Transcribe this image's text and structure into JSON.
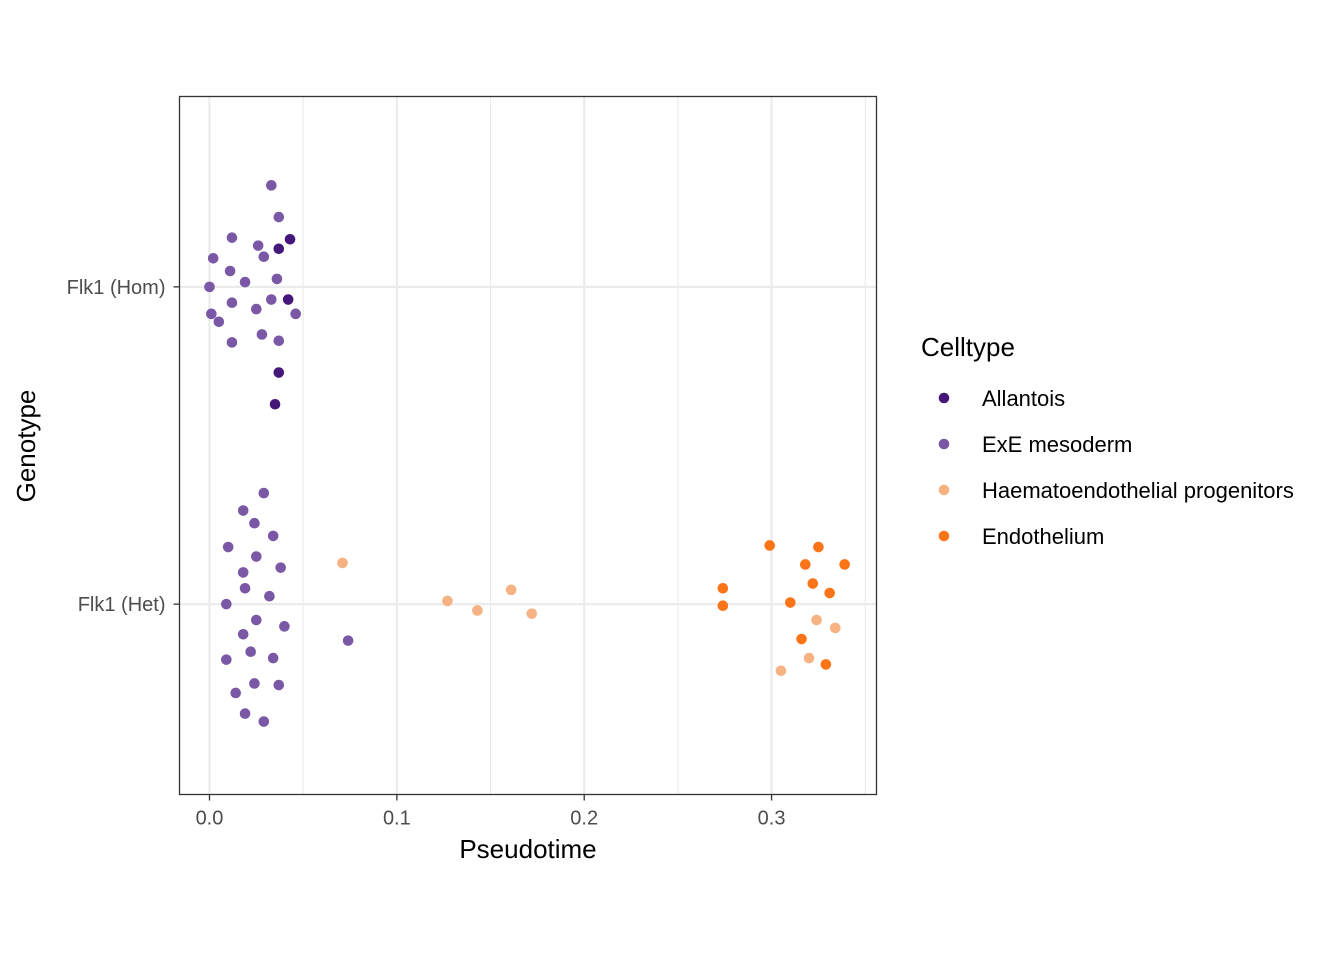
{
  "chart_data": {
    "type": "scatter",
    "title": "",
    "xlabel": "Pseudotime",
    "ylabel": "Genotype",
    "xlim": [
      -0.016,
      0.356
    ],
    "x_ticks": [
      "0.0",
      "0.1",
      "0.2",
      "0.3"
    ],
    "y_categories": [
      "Flk1 (Het)",
      "Flk1 (Hom)"
    ],
    "grid": true,
    "legend": {
      "title": "Celltype",
      "placement": "right",
      "entries": [
        "Allantois",
        "ExE mesoderm",
        "Haematoendothelial progenitors",
        "Endothelium"
      ]
    },
    "colors": {
      "Allantois": "#45177a",
      "ExE mesoderm": "#7a58a6",
      "Haematoendothelial progenitors": "#f6b283",
      "Endothelium": "#fc7418"
    },
    "series": [
      {
        "name": "Allantois",
        "points": [
          {
            "x": 0.037,
            "y": "Flk1 (Hom)",
            "jitter": 0.12
          },
          {
            "x": 0.043,
            "y": "Flk1 (Hom)",
            "jitter": 0.15
          },
          {
            "x": 0.042,
            "y": "Flk1 (Hom)",
            "jitter": -0.04
          },
          {
            "x": 0.037,
            "y": "Flk1 (Hom)",
            "jitter": -0.27
          },
          {
            "x": 0.035,
            "y": "Flk1 (Hom)",
            "jitter": -0.37
          }
        ]
      },
      {
        "name": "ExE mesoderm",
        "points": [
          {
            "x": 0.033,
            "y": "Flk1 (Hom)",
            "jitter": 0.32
          },
          {
            "x": 0.037,
            "y": "Flk1 (Hom)",
            "jitter": 0.22
          },
          {
            "x": 0.012,
            "y": "Flk1 (Hom)",
            "jitter": 0.155
          },
          {
            "x": 0.026,
            "y": "Flk1 (Hom)",
            "jitter": 0.13
          },
          {
            "x": 0.029,
            "y": "Flk1 (Hom)",
            "jitter": 0.095
          },
          {
            "x": 0.002,
            "y": "Flk1 (Hom)",
            "jitter": 0.09
          },
          {
            "x": 0.011,
            "y": "Flk1 (Hom)",
            "jitter": 0.05
          },
          {
            "x": 0.036,
            "y": "Flk1 (Hom)",
            "jitter": 0.025
          },
          {
            "x": 0.019,
            "y": "Flk1 (Hom)",
            "jitter": 0.015
          },
          {
            "x": 0.0,
            "y": "Flk1 (Hom)",
            "jitter": 0.0
          },
          {
            "x": 0.033,
            "y": "Flk1 (Hom)",
            "jitter": -0.04
          },
          {
            "x": 0.012,
            "y": "Flk1 (Hom)",
            "jitter": -0.05
          },
          {
            "x": 0.025,
            "y": "Flk1 (Hom)",
            "jitter": -0.07
          },
          {
            "x": 0.001,
            "y": "Flk1 (Hom)",
            "jitter": -0.085
          },
          {
            "x": 0.046,
            "y": "Flk1 (Hom)",
            "jitter": -0.085
          },
          {
            "x": 0.005,
            "y": "Flk1 (Hom)",
            "jitter": -0.11
          },
          {
            "x": 0.028,
            "y": "Flk1 (Hom)",
            "jitter": -0.15
          },
          {
            "x": 0.037,
            "y": "Flk1 (Hom)",
            "jitter": -0.17
          },
          {
            "x": 0.012,
            "y": "Flk1 (Hom)",
            "jitter": -0.175
          },
          {
            "x": 0.029,
            "y": "Flk1 (Het)",
            "jitter": 0.35
          },
          {
            "x": 0.018,
            "y": "Flk1 (Het)",
            "jitter": 0.295
          },
          {
            "x": 0.024,
            "y": "Flk1 (Het)",
            "jitter": 0.255
          },
          {
            "x": 0.034,
            "y": "Flk1 (Het)",
            "jitter": 0.215
          },
          {
            "x": 0.01,
            "y": "Flk1 (Het)",
            "jitter": 0.18
          },
          {
            "x": 0.025,
            "y": "Flk1 (Het)",
            "jitter": 0.15
          },
          {
            "x": 0.038,
            "y": "Flk1 (Het)",
            "jitter": 0.115
          },
          {
            "x": 0.018,
            "y": "Flk1 (Het)",
            "jitter": 0.1
          },
          {
            "x": 0.019,
            "y": "Flk1 (Het)",
            "jitter": 0.05
          },
          {
            "x": 0.032,
            "y": "Flk1 (Het)",
            "jitter": 0.025
          },
          {
            "x": 0.009,
            "y": "Flk1 (Het)",
            "jitter": 0.0
          },
          {
            "x": 0.025,
            "y": "Flk1 (Het)",
            "jitter": -0.05
          },
          {
            "x": 0.04,
            "y": "Flk1 (Het)",
            "jitter": -0.07
          },
          {
            "x": 0.018,
            "y": "Flk1 (Het)",
            "jitter": -0.095
          },
          {
            "x": 0.074,
            "y": "Flk1 (Het)",
            "jitter": -0.115
          },
          {
            "x": 0.022,
            "y": "Flk1 (Het)",
            "jitter": -0.15
          },
          {
            "x": 0.034,
            "y": "Flk1 (Het)",
            "jitter": -0.17
          },
          {
            "x": 0.009,
            "y": "Flk1 (Het)",
            "jitter": -0.175
          },
          {
            "x": 0.024,
            "y": "Flk1 (Het)",
            "jitter": -0.25
          },
          {
            "x": 0.037,
            "y": "Flk1 (Het)",
            "jitter": -0.255
          },
          {
            "x": 0.014,
            "y": "Flk1 (Het)",
            "jitter": -0.28
          },
          {
            "x": 0.019,
            "y": "Flk1 (Het)",
            "jitter": -0.345
          },
          {
            "x": 0.029,
            "y": "Flk1 (Het)",
            "jitter": -0.37
          }
        ]
      },
      {
        "name": "Haematoendothelial progenitors",
        "points": [
          {
            "x": 0.071,
            "y": "Flk1 (Het)",
            "jitter": 0.13
          },
          {
            "x": 0.127,
            "y": "Flk1 (Het)",
            "jitter": 0.01
          },
          {
            "x": 0.143,
            "y": "Flk1 (Het)",
            "jitter": -0.02
          },
          {
            "x": 0.161,
            "y": "Flk1 (Het)",
            "jitter": 0.045
          },
          {
            "x": 0.172,
            "y": "Flk1 (Het)",
            "jitter": -0.03
          },
          {
            "x": 0.324,
            "y": "Flk1 (Het)",
            "jitter": -0.05
          },
          {
            "x": 0.334,
            "y": "Flk1 (Het)",
            "jitter": -0.075
          },
          {
            "x": 0.32,
            "y": "Flk1 (Het)",
            "jitter": -0.17
          },
          {
            "x": 0.305,
            "y": "Flk1 (Het)",
            "jitter": -0.21
          }
        ]
      },
      {
        "name": "Endothelium",
        "points": [
          {
            "x": 0.299,
            "y": "Flk1 (Het)",
            "jitter": 0.185
          },
          {
            "x": 0.325,
            "y": "Flk1 (Het)",
            "jitter": 0.18
          },
          {
            "x": 0.318,
            "y": "Flk1 (Het)",
            "jitter": 0.125
          },
          {
            "x": 0.339,
            "y": "Flk1 (Het)",
            "jitter": 0.125
          },
          {
            "x": 0.322,
            "y": "Flk1 (Het)",
            "jitter": 0.065
          },
          {
            "x": 0.274,
            "y": "Flk1 (Het)",
            "jitter": 0.05
          },
          {
            "x": 0.331,
            "y": "Flk1 (Het)",
            "jitter": 0.035
          },
          {
            "x": 0.31,
            "y": "Flk1 (Het)",
            "jitter": 0.005
          },
          {
            "x": 0.274,
            "y": "Flk1 (Het)",
            "jitter": -0.005
          },
          {
            "x": 0.316,
            "y": "Flk1 (Het)",
            "jitter": -0.11
          },
          {
            "x": 0.329,
            "y": "Flk1 (Het)",
            "jitter": -0.19
          }
        ]
      }
    ]
  }
}
